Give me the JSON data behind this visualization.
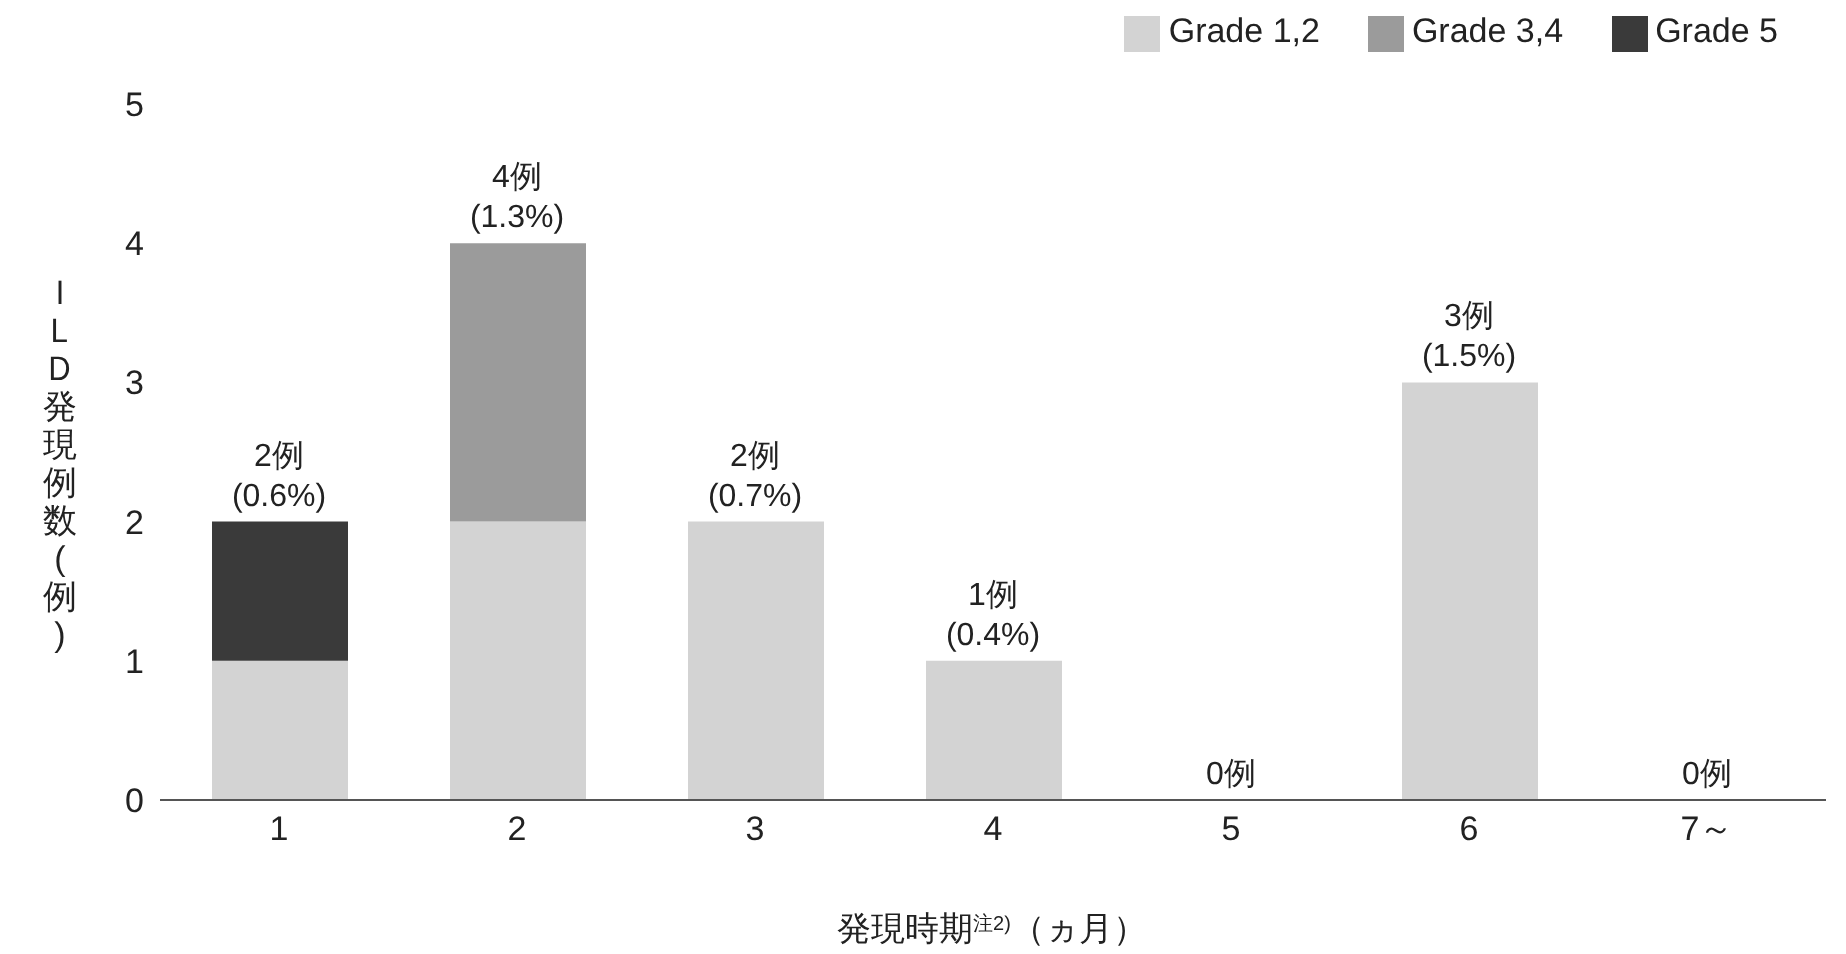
{
  "chart_data": {
    "type": "bar",
    "stacked": true,
    "xlabel": "発現時期$^{注2)}$（ヵ月）",
    "ylabel": "ＩＬＤ発現例数(例)",
    "categories": [
      "1",
      "2",
      "3",
      "4",
      "5",
      "6",
      "7～"
    ],
    "series": [
      {
        "name": "Grade 1,2",
        "color": "#d3d3d3",
        "values": [
          1,
          2,
          2,
          1,
          0,
          3,
          0
        ]
      },
      {
        "name": "Grade 3,4",
        "color": "#9b9b9b",
        "values": [
          0,
          2,
          0,
          0,
          0,
          0,
          0
        ]
      },
      {
        "name": "Grade 5",
        "color": "#3a3a3a",
        "values": [
          1,
          0,
          0,
          0,
          0,
          0,
          0
        ]
      }
    ],
    "totals": [
      "2例\n(0.6%)",
      "4例\n(1.3%)",
      "2例\n(0.7%)",
      "1例\n(0.4%)",
      "0例",
      "3例\n(1.5%)",
      "0例"
    ],
    "ylim": [
      0,
      5
    ],
    "yticks": [
      0,
      1,
      2,
      3,
      4,
      5
    ],
    "grid": false,
    "legend": "top right"
  }
}
